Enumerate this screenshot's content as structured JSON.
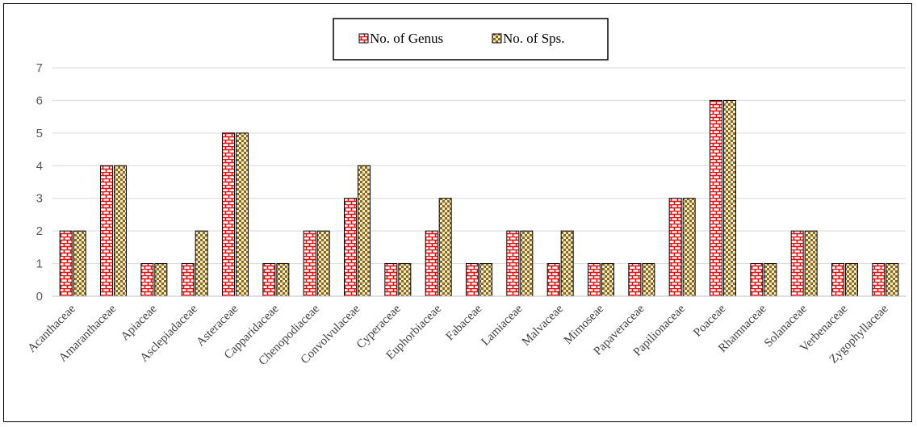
{
  "chart_data": {
    "type": "bar",
    "title": "",
    "xlabel": "",
    "ylabel": "",
    "ylim": [
      0,
      7
    ],
    "yticks": [
      "0",
      "1",
      "2",
      "3",
      "4",
      "5",
      "6",
      "7"
    ],
    "grid": true,
    "legend_position": "top-center",
    "categories": [
      "Acanthaceae",
      "Amaranthaceae",
      "Apiaceae",
      "Asclepiadaceae",
      "Asteraceae",
      "Capparidaceae",
      "Chenopodiaceae",
      "Convolvulaceae",
      "Cyperaceae",
      "Euphorbiaceae",
      "Fabaceae",
      "Lamiaceae",
      "Malvaceae",
      "Mimoseae",
      "Papaveraceae",
      "Papilionaceae",
      "Poaceae",
      "Rhamnaceae",
      "Solanaceae",
      "Verbenaceae",
      "Zygophyllaceae"
    ],
    "series": [
      {
        "name": "No. of Genus",
        "values": [
          2,
          4,
          1,
          1,
          5,
          1,
          2,
          3,
          1,
          2,
          1,
          2,
          1,
          1,
          1,
          3,
          6,
          1,
          2,
          1,
          1
        ],
        "color": "#ff0000",
        "pattern": "brick"
      },
      {
        "name": "No. of Sps.",
        "values": [
          2,
          4,
          1,
          2,
          5,
          1,
          2,
          4,
          1,
          3,
          1,
          2,
          2,
          1,
          1,
          3,
          6,
          1,
          2,
          1,
          1
        ],
        "color": "#8b6914",
        "pattern": "checker"
      }
    ]
  }
}
